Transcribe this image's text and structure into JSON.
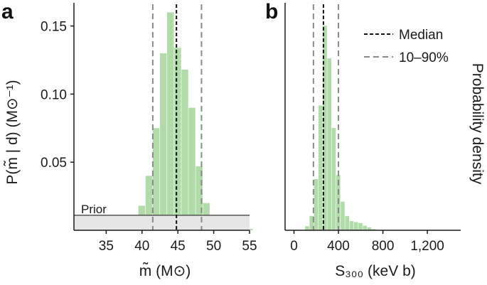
{
  "colors": {
    "bar": "#a8d8a0",
    "axis": "#1a1a1a",
    "median": "#111111",
    "percentile": "#8a8a8a",
    "prior_fill": "#e6e6e6",
    "prior_line": "#555555"
  },
  "chart_data": [
    {
      "panel": "a",
      "type": "bar",
      "xlabel": "m̃ (M⊙)",
      "ylabel": "P(m̃ | d) (M⊙⁻¹)",
      "xlim": [
        30.5,
        55
      ],
      "ylim": [
        0,
        0.167
      ],
      "xticks": [
        35,
        40,
        45,
        50,
        55
      ],
      "yticks": [
        0.05,
        0.1,
        0.15
      ],
      "ytick_labels": [
        "0.05",
        "0.10",
        "0.15"
      ],
      "bin_width": 1,
      "bin_starts": [
        38.5,
        39.5,
        40.5,
        41.5,
        42.5,
        43.5,
        44.5,
        45.5,
        46.5,
        47.5,
        48.5,
        49.5,
        50.5,
        51.5,
        52.5,
        53.5,
        54.5
      ],
      "values": [
        0.006,
        0.018,
        0.04,
        0.075,
        0.13,
        0.16,
        0.134,
        0.118,
        0.09,
        0.047,
        0.02,
        0.01,
        0.007,
        0.004,
        0.003,
        0.002,
        0.001
      ],
      "median": 44.8,
      "percentile_10": 41.5,
      "percentile_90": 48.3,
      "prior": {
        "label": "Prior",
        "density": 0.011
      }
    },
    {
      "panel": "b",
      "type": "bar",
      "xlabel": "S₃₀₀ (keV b)",
      "ylabel": "Probability density",
      "xlim": [
        -80,
        1500
      ],
      "xticks": [
        0,
        400,
        800,
        1200
      ],
      "xtick_labels": [
        "0",
        "400",
        "800",
        "1,200"
      ],
      "bin_width": 40,
      "bin_starts": [
        100,
        140,
        180,
        220,
        260,
        300,
        340,
        380,
        420,
        460,
        500,
        540,
        580,
        620,
        660,
        700
      ],
      "values": [
        0.02,
        0.07,
        0.25,
        0.61,
        1.0,
        0.84,
        0.5,
        0.27,
        0.14,
        0.07,
        0.045,
        0.04,
        0.035,
        0.022,
        0.014,
        0.006
      ],
      "median": 265,
      "percentile_10": 175,
      "percentile_90": 400,
      "legend": {
        "position": "top-right",
        "entries": [
          "Median",
          "10–90%"
        ]
      }
    }
  ]
}
